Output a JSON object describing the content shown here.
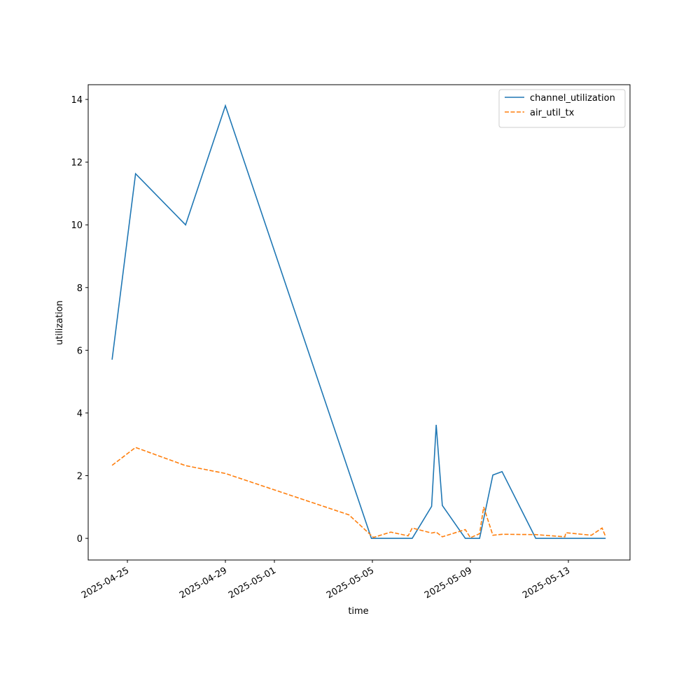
{
  "chart_data": {
    "type": "line",
    "xlabel": "time",
    "ylabel": "utilization",
    "series": [
      {
        "name": "channel_utilization",
        "color": "#1f77b4",
        "dash": "solid",
        "x": [
          "2025-04-24T09:00",
          "2025-04-25T08:00",
          "2025-04-27T09:00",
          "2025-04-29T00:00",
          "2025-05-04T23:00",
          "2025-05-06T15:00",
          "2025-05-07T10:00",
          "2025-05-07T14:30",
          "2025-05-07T20:30",
          "2025-05-08T19:00",
          "2025-05-09T09:00",
          "2025-05-09T22:00",
          "2025-05-10T07:00",
          "2025-05-11T16:00",
          "2025-05-12T20:30",
          "2025-05-14T12:30"
        ],
        "values": [
          5.7,
          11.63,
          10.0,
          13.8,
          0,
          0,
          1.02,
          3.62,
          1.05,
          0,
          0,
          2.02,
          2.13,
          0,
          0,
          0
        ]
      },
      {
        "name": "air_util_tx",
        "color": "#ff7f0e",
        "dash": "dashed",
        "x": [
          "2025-04-24T09:00",
          "2025-04-25T08:00",
          "2025-04-27T09:00",
          "2025-04-29T00:00",
          "2025-05-04T01:00",
          "2025-05-05T01:00",
          "2025-05-05T18:00",
          "2025-05-06T11:00",
          "2025-05-06T15:00",
          "2025-05-07T10:00",
          "2025-05-07T14:30",
          "2025-05-07T20:30",
          "2025-05-08T19:00",
          "2025-05-09T00:00",
          "2025-05-09T09:00",
          "2025-05-09T13:00",
          "2025-05-09T22:00",
          "2025-05-10T07:00",
          "2025-05-11T16:00",
          "2025-05-12T20:30",
          "2025-05-12T21:30",
          "2025-05-13T22:30",
          "2025-05-14T09:00",
          "2025-05-14T12:30"
        ],
        "values": [
          2.33,
          2.9,
          2.32,
          2.07,
          0.75,
          0.03,
          0.2,
          0.08,
          0.33,
          0.17,
          0.2,
          0.05,
          0.28,
          0.02,
          0.15,
          1.0,
          0.1,
          0.13,
          0.12,
          0.05,
          0.18,
          0.1,
          0.33,
          0.05
        ]
      }
    ],
    "xlim": [
      "2025-04-23T09:36",
      "2025-05-15T12:20"
    ],
    "xticks": [
      "2025-04-25",
      "2025-04-29",
      "2025-05-01",
      "2025-05-05",
      "2025-05-09",
      "2025-05-13"
    ],
    "ylim": [
      -0.69,
      14.47
    ],
    "yticks": [
      0,
      2,
      4,
      6,
      8,
      10,
      12,
      14
    ],
    "legend": "upper right",
    "grid": false
  }
}
